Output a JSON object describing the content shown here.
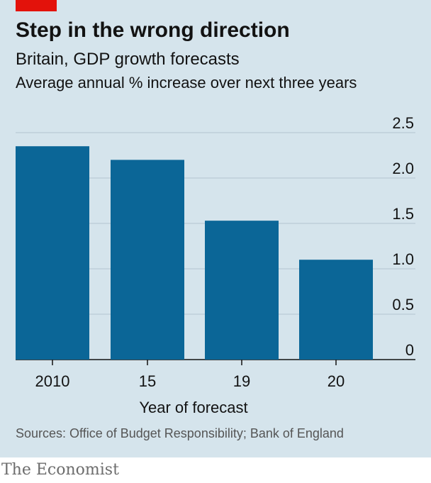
{
  "header": {
    "title": "Step in the wrong direction",
    "subtitle": "Britain, GDP growth forecasts",
    "subtitle2": "Average annual % increase over next three years"
  },
  "footer": {
    "source": "Sources: Office of Budget Responsibility; Bank of England",
    "brand": "The Economist"
  },
  "colors": {
    "bar": "#0b6697",
    "background": "#d5e4ec",
    "accent": "#e3120b"
  },
  "chart_data": {
    "type": "bar",
    "categories": [
      "2010",
      "15",
      "19",
      "20"
    ],
    "values": [
      2.35,
      2.2,
      1.53,
      1.1
    ],
    "title": "Step in the wrong direction",
    "subtitle": "Britain, GDP growth forecasts",
    "xlabel": "Year of forecast",
    "ylabel": "",
    "ylim": [
      0,
      2.5
    ],
    "yticks": [
      0,
      0.5,
      1.0,
      1.5,
      2.0,
      2.5
    ],
    "ytick_labels": [
      "0",
      "0.5",
      "1.0",
      "1.5",
      "2.0",
      "2.5"
    ],
    "grid": true,
    "y_axis_side": "right"
  }
}
